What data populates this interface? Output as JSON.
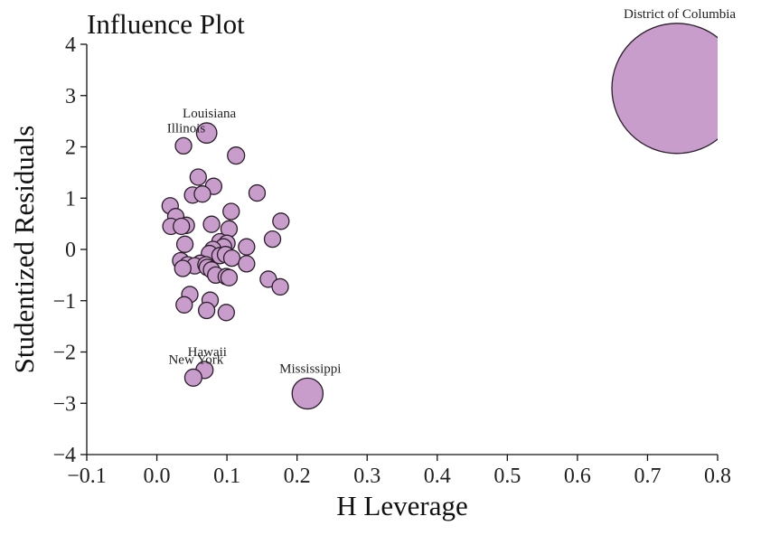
{
  "chart_data": {
    "type": "scatter",
    "title": "Influence Plot",
    "xlabel": "H Leverage",
    "ylabel": "Studentized Residuals",
    "xlim": [
      -0.1,
      0.8
    ],
    "ylim": [
      -4,
      4
    ],
    "xticks": [
      -0.1,
      0.0,
      0.1,
      0.2,
      0.3,
      0.4,
      0.5,
      0.6,
      0.7,
      0.8
    ],
    "xtick_labels": [
      "−0.1",
      "0.0",
      "0.1",
      "0.2",
      "0.3",
      "0.4",
      "0.5",
      "0.6",
      "0.7",
      "0.8"
    ],
    "yticks": [
      -4,
      -3,
      -2,
      -1,
      0,
      1,
      2,
      3,
      4
    ],
    "ytick_labels": [
      "−4",
      "−3",
      "−2",
      "−1",
      "0",
      "1",
      "2",
      "3",
      "4"
    ],
    "grid": false,
    "legend": "none",
    "marker_color": "#c89ccb",
    "marker_edge_color": "#2a1e2a",
    "points": [
      {
        "x": 0.742,
        "y": 3.14,
        "size": 8.0,
        "label": "District of Columbia"
      },
      {
        "x": 0.071,
        "y": 2.27,
        "size": 1.25,
        "label": "Louisiana"
      },
      {
        "x": 0.038,
        "y": 2.02,
        "size": 1.0,
        "label": "Illinois"
      },
      {
        "x": 0.068,
        "y": -2.35,
        "size": 1.05,
        "label": "Hawaii"
      },
      {
        "x": 0.052,
        "y": -2.5,
        "size": 1.05,
        "label": "New York"
      },
      {
        "x": 0.215,
        "y": -2.81,
        "size": 1.9,
        "label": "Mississippi"
      },
      {
        "x": 0.113,
        "y": 1.83,
        "size": 1.05
      },
      {
        "x": 0.059,
        "y": 1.41,
        "size": 1.0
      },
      {
        "x": 0.081,
        "y": 1.23,
        "size": 1.0
      },
      {
        "x": 0.051,
        "y": 1.06,
        "size": 1.0
      },
      {
        "x": 0.065,
        "y": 1.08,
        "size": 1.0
      },
      {
        "x": 0.143,
        "y": 1.1,
        "size": 1.0
      },
      {
        "x": 0.019,
        "y": 0.85,
        "size": 1.0
      },
      {
        "x": 0.106,
        "y": 0.74,
        "size": 1.0
      },
      {
        "x": 0.027,
        "y": 0.64,
        "size": 1.0
      },
      {
        "x": 0.177,
        "y": 0.55,
        "size": 1.0
      },
      {
        "x": 0.078,
        "y": 0.49,
        "size": 1.0
      },
      {
        "x": 0.042,
        "y": 0.47,
        "size": 1.0
      },
      {
        "x": 0.02,
        "y": 0.45,
        "size": 1.0
      },
      {
        "x": 0.035,
        "y": 0.45,
        "size": 1.0
      },
      {
        "x": 0.103,
        "y": 0.4,
        "size": 1.0
      },
      {
        "x": 0.165,
        "y": 0.2,
        "size": 1.0
      },
      {
        "x": 0.09,
        "y": 0.15,
        "size": 1.0
      },
      {
        "x": 0.1,
        "y": 0.12,
        "size": 1.0
      },
      {
        "x": 0.04,
        "y": 0.1,
        "size": 1.0
      },
      {
        "x": 0.095,
        "y": 0.05,
        "size": 1.0
      },
      {
        "x": 0.128,
        "y": 0.05,
        "size": 1.0
      },
      {
        "x": 0.08,
        "y": 0.0,
        "size": 1.0
      },
      {
        "x": 0.075,
        "y": -0.08,
        "size": 1.0
      },
      {
        "x": 0.09,
        "y": -0.12,
        "size": 1.0
      },
      {
        "x": 0.098,
        "y": -0.1,
        "size": 1.0
      },
      {
        "x": 0.107,
        "y": -0.17,
        "size": 1.0
      },
      {
        "x": 0.034,
        "y": -0.22,
        "size": 1.0
      },
      {
        "x": 0.062,
        "y": -0.27,
        "size": 1.0
      },
      {
        "x": 0.044,
        "y": -0.3,
        "size": 1.0
      },
      {
        "x": 0.054,
        "y": -0.32,
        "size": 1.0
      },
      {
        "x": 0.07,
        "y": -0.3,
        "size": 1.0
      },
      {
        "x": 0.128,
        "y": -0.28,
        "size": 1.0
      },
      {
        "x": 0.037,
        "y": -0.37,
        "size": 1.0
      },
      {
        "x": 0.072,
        "y": -0.35,
        "size": 1.0
      },
      {
        "x": 0.078,
        "y": -0.4,
        "size": 1.0
      },
      {
        "x": 0.084,
        "y": -0.5,
        "size": 1.0
      },
      {
        "x": 0.099,
        "y": -0.53,
        "size": 1.0
      },
      {
        "x": 0.103,
        "y": -0.55,
        "size": 1.0
      },
      {
        "x": 0.159,
        "y": -0.58,
        "size": 1.0
      },
      {
        "x": 0.176,
        "y": -0.73,
        "size": 1.0
      },
      {
        "x": 0.047,
        "y": -0.88,
        "size": 1.0
      },
      {
        "x": 0.076,
        "y": -0.99,
        "size": 1.0
      },
      {
        "x": 0.039,
        "y": -1.08,
        "size": 1.0
      },
      {
        "x": 0.071,
        "y": -1.19,
        "size": 1.0
      },
      {
        "x": 0.099,
        "y": -1.23,
        "size": 1.0
      }
    ]
  }
}
